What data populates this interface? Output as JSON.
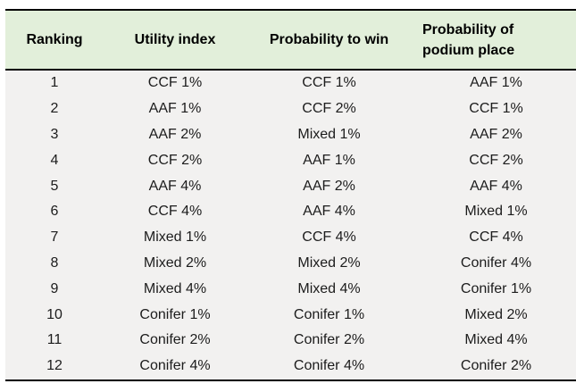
{
  "table": {
    "header": {
      "col1": "Ranking",
      "col2": "Utility index",
      "col3": "Probability to win",
      "col4_line1": "Probability of",
      "col4_line2": "podium place"
    },
    "rows": [
      [
        "1",
        "CCF 1%",
        "CCF 1%",
        "AAF 1%"
      ],
      [
        "2",
        "AAF 1%",
        "CCF 2%",
        "CCF 1%"
      ],
      [
        "3",
        "AAF 2%",
        "Mixed 1%",
        "AAF 2%"
      ],
      [
        "4",
        "CCF 2%",
        "AAF 1%",
        "CCF 2%"
      ],
      [
        "5",
        "AAF 4%",
        "AAF 2%",
        "AAF 4%"
      ],
      [
        "6",
        "CCF 4%",
        "AAF 4%",
        "Mixed 1%"
      ],
      [
        "7",
        "Mixed 1%",
        "CCF 4%",
        "CCF 4%"
      ],
      [
        "8",
        "Mixed 2%",
        "Mixed 2%",
        "Conifer 4%"
      ],
      [
        "9",
        "Mixed 4%",
        "Mixed 4%",
        "Conifer 1%"
      ],
      [
        "10",
        "Conifer 1%",
        "Conifer 1%",
        "Mixed 2%"
      ],
      [
        "11",
        "Conifer 2%",
        "Conifer 2%",
        "Mixed 4%"
      ],
      [
        "12",
        "Conifer 4%",
        "Conifer 4%",
        "Conifer 2%"
      ]
    ],
    "colors": {
      "header_bg": "#e2efda",
      "body_bg": "#f2f1f0",
      "border": "#000000",
      "header_text": "#000000",
      "body_text": "#1c1c1c"
    }
  },
  "chart_data": {
    "type": "table",
    "columns": [
      "Ranking",
      "Utility index",
      "Probability to win",
      "Probability of podium place"
    ],
    "rows": [
      [
        "1",
        "CCF 1%",
        "CCF 1%",
        "AAF 1%"
      ],
      [
        "2",
        "AAF 1%",
        "CCF 2%",
        "CCF 1%"
      ],
      [
        "3",
        "AAF 2%",
        "Mixed 1%",
        "AAF 2%"
      ],
      [
        "4",
        "CCF 2%",
        "AAF 1%",
        "CCF 2%"
      ],
      [
        "5",
        "AAF 4%",
        "AAF 2%",
        "AAF 4%"
      ],
      [
        "6",
        "CCF 4%",
        "AAF 4%",
        "Mixed 1%"
      ],
      [
        "7",
        "Mixed 1%",
        "CCF 4%",
        "CCF 4%"
      ],
      [
        "8",
        "Mixed 2%",
        "Mixed 2%",
        "Conifer 4%"
      ],
      [
        "9",
        "Mixed 4%",
        "Mixed 4%",
        "Conifer 1%"
      ],
      [
        "10",
        "Conifer 1%",
        "Conifer 1%",
        "Mixed 2%"
      ],
      [
        "11",
        "Conifer 2%",
        "Conifer 2%",
        "Mixed 4%"
      ],
      [
        "12",
        "Conifer 4%",
        "Conifer 4%",
        "Conifer 2%"
      ]
    ]
  }
}
